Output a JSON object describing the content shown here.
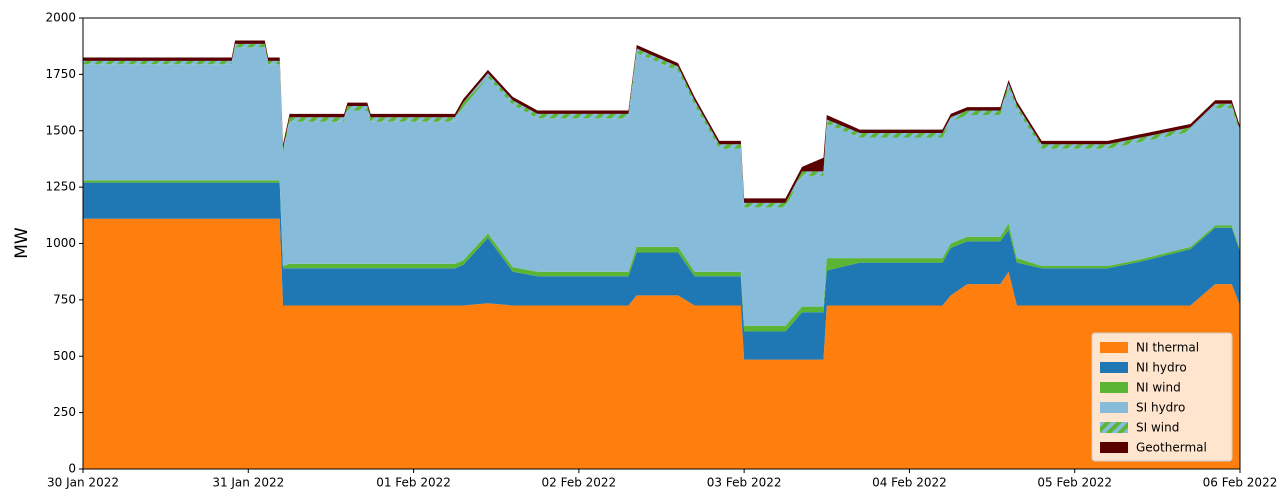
{
  "chart_data": {
    "type": "stacked_area",
    "y_label": "MW",
    "x": [
      0,
      0.9,
      0.92,
      1.1,
      1.12,
      1.19,
      1.21,
      1.25,
      1.58,
      1.6,
      1.72,
      1.74,
      2.25,
      2.3,
      2.45,
      2.6,
      2.75,
      3.3,
      3.35,
      3.6,
      3.7,
      3.85,
      3.98,
      4.0,
      4.25,
      4.35,
      4.48,
      4.5,
      4.7,
      5.2,
      5.25,
      5.35,
      5.55,
      5.6,
      5.65,
      5.8,
      6.2,
      6.4,
      6.7,
      6.85,
      6.95,
      7.0
    ],
    "series": [
      {
        "name": "NI thermal",
        "color": "#ff7f0e",
        "values": [
          1110,
          1110,
          1110,
          1110,
          1110,
          1110,
          725,
          725,
          725,
          725,
          725,
          725,
          725,
          725,
          735,
          725,
          725,
          725,
          770,
          770,
          725,
          725,
          725,
          485,
          485,
          485,
          485,
          725,
          725,
          725,
          770,
          820,
          820,
          875,
          725,
          725,
          725,
          725,
          725,
          820,
          820,
          725
        ]
      },
      {
        "name": "NI hydro",
        "color": "#1f77b4",
        "values": [
          160,
          160,
          160,
          160,
          160,
          160,
          165,
          165,
          165,
          165,
          165,
          165,
          165,
          180,
          290,
          150,
          130,
          130,
          190,
          190,
          130,
          130,
          130,
          125,
          125,
          210,
          210,
          155,
          190,
          190,
          210,
          190,
          190,
          185,
          190,
          165,
          165,
          195,
          250,
          250,
          250,
          240
        ]
      },
      {
        "name": "NI wind",
        "color": "#5bb534",
        "values": [
          10,
          10,
          10,
          10,
          10,
          10,
          10,
          20,
          20,
          20,
          20,
          20,
          20,
          20,
          20,
          20,
          20,
          20,
          25,
          25,
          20,
          20,
          20,
          25,
          25,
          25,
          25,
          55,
          20,
          20,
          20,
          20,
          20,
          30,
          20,
          10,
          10,
          10,
          10,
          10,
          10,
          10
        ]
      },
      {
        "name": "SI hydro",
        "color": "#86bcd9",
        "values": [
          515,
          515,
          590,
          590,
          515,
          515,
          500,
          630,
          630,
          680,
          680,
          630,
          630,
          680,
          690,
          720,
          680,
          680,
          860,
          780,
          740,
          545,
          545,
          525,
          525,
          580,
          580,
          595,
          535,
          535,
          540,
          540,
          540,
          600,
          660,
          520,
          520,
          520,
          510,
          520,
          520,
          510
        ]
      },
      {
        "name": "SI wind",
        "color": "#5bb534",
        "hatch": true,
        "values": [
          15,
          15,
          15,
          15,
          15,
          15,
          20,
          20,
          20,
          20,
          20,
          20,
          20,
          20,
          20,
          20,
          20,
          20,
          20,
          20,
          20,
          20,
          20,
          20,
          20,
          20,
          20,
          20,
          20,
          20,
          20,
          20,
          20,
          20,
          20,
          20,
          20,
          20,
          20,
          20,
          20,
          20
        ]
      },
      {
        "name": "Geothermal",
        "color": "#5a0000",
        "values": [
          15,
          15,
          15,
          15,
          15,
          15,
          20,
          15,
          15,
          15,
          15,
          15,
          15,
          15,
          15,
          15,
          15,
          15,
          15,
          15,
          15,
          15,
          15,
          20,
          20,
          20,
          60,
          20,
          15,
          15,
          15,
          15,
          15,
          15,
          15,
          15,
          15,
          15,
          15,
          15,
          15,
          15
        ]
      }
    ],
    "xlim": [
      0,
      7
    ],
    "xticks": [
      {
        "value": 0,
        "label": "30 Jan 2022"
      },
      {
        "value": 1,
        "label": "31 Jan 2022"
      },
      {
        "value": 2,
        "label": "01 Feb 2022"
      },
      {
        "value": 3,
        "label": "02 Feb 2022"
      },
      {
        "value": 4,
        "label": "03 Feb 2022"
      },
      {
        "value": 5,
        "label": "04 Feb 2022"
      },
      {
        "value": 6,
        "label": "05 Feb 2022"
      },
      {
        "value": 7,
        "label": "06 Feb 2022"
      }
    ],
    "ylim": [
      0,
      2000
    ],
    "yticks": [
      0,
      250,
      500,
      750,
      1000,
      1250,
      1500,
      1750,
      2000
    ],
    "legend": "lower right"
  }
}
